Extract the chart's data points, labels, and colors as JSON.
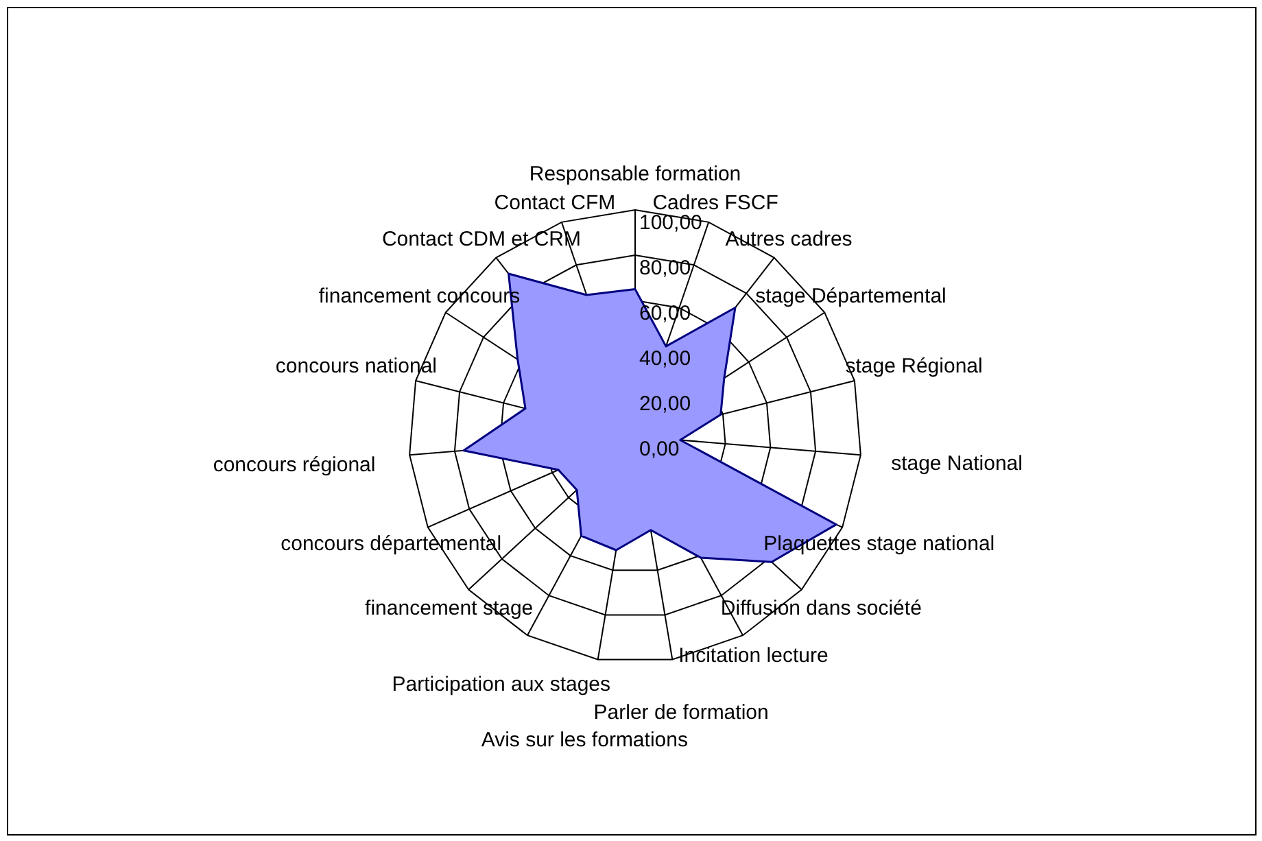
{
  "chart_data": {
    "type": "radar",
    "categories": [
      "Responsable formation",
      "Cadres FSCF",
      "Autres cadres",
      "stage Départemental",
      "stage Régional",
      "stage National",
      "Plaquettes stage national",
      "Diffusion dans société",
      "Incitation lecture",
      "Parler de formation",
      "Avis sur les formations",
      "Participation aux stages",
      "financement stage",
      "concours départemental",
      "concours régional",
      "concours national",
      "financement concours",
      "Contact CDM et CRM",
      "Contact CFM"
    ],
    "series": [
      {
        "color": "#9999ff",
        "values": [
          65,
          42,
          72,
          47,
          39,
          20,
          97,
          82,
          61,
          42,
          51,
          50,
          35,
          37,
          76,
          50,
          62,
          91,
          66
        ]
      }
    ],
    "ylim": [
      0,
      100
    ],
    "yticks": [
      {
        "value": 0,
        "label": "0,00"
      },
      {
        "value": 20,
        "label": "20,00"
      },
      {
        "value": 40,
        "label": "40,00"
      },
      {
        "value": 60,
        "label": "60,00"
      },
      {
        "value": 80,
        "label": "80,00"
      },
      {
        "value": 100,
        "label": "100,00"
      }
    ],
    "grid": true
  }
}
